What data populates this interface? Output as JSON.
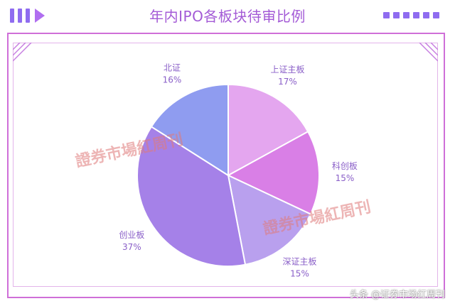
{
  "header": {
    "title": "年内IPO各板块待审比例"
  },
  "chart_data": {
    "type": "pie",
    "title": "年内IPO各板块待审比例",
    "slices": [
      {
        "name": "上证主板",
        "value": 17,
        "label": "17%",
        "color": "#e4a6ef"
      },
      {
        "name": "科创板",
        "value": 15,
        "label": "15%",
        "color": "#d97fe6"
      },
      {
        "name": "深证主板",
        "value": 15,
        "label": "15%",
        "color": "#b9a0ee"
      },
      {
        "name": "创业板",
        "value": 37,
        "label": "37%",
        "color": "#a581e8"
      },
      {
        "name": "北证",
        "value": 16,
        "label": "16%",
        "color": "#8f9cf0"
      }
    ]
  },
  "watermark": {
    "text": "證券市場紅周刊"
  },
  "source": {
    "text": "头条 @证券市场红周刊"
  }
}
